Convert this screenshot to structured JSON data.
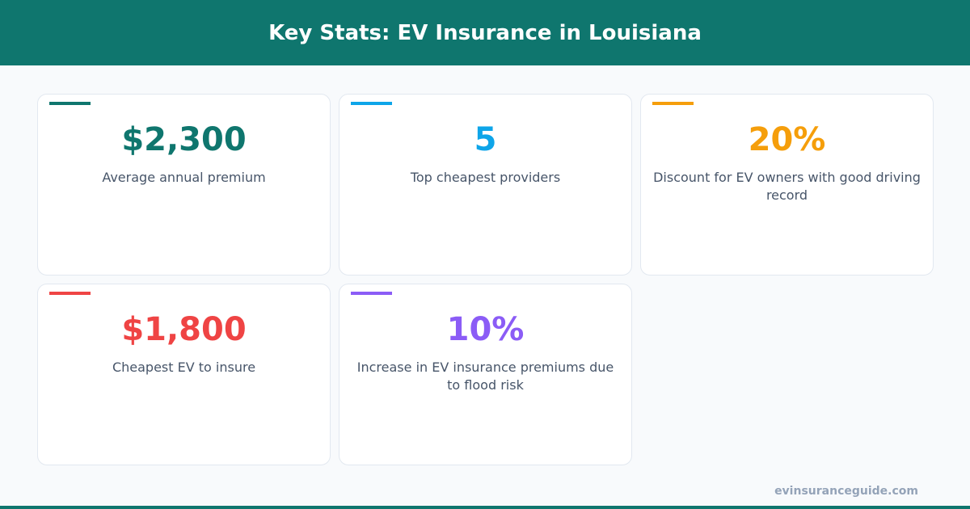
{
  "title": "Key Stats: EV Insurance in Louisiana",
  "stats": [
    {
      "value": "$2,300",
      "label": "Average annual premium",
      "color": "#0f766e"
    },
    {
      "value": "5",
      "label": "Top cheapest providers",
      "color": "#0ea5e9"
    },
    {
      "value": "20%",
      "label": "Discount for EV owners with good driving record",
      "color": "#f59e0b"
    },
    {
      "value": "$1,800",
      "label": "Cheapest EV to insure",
      "color": "#ef4444"
    },
    {
      "value": "10%",
      "label": "Increase in EV insurance premiums due to flood risk",
      "color": "#8b5cf6"
    }
  ],
  "footer": "evinsuranceguide.com"
}
